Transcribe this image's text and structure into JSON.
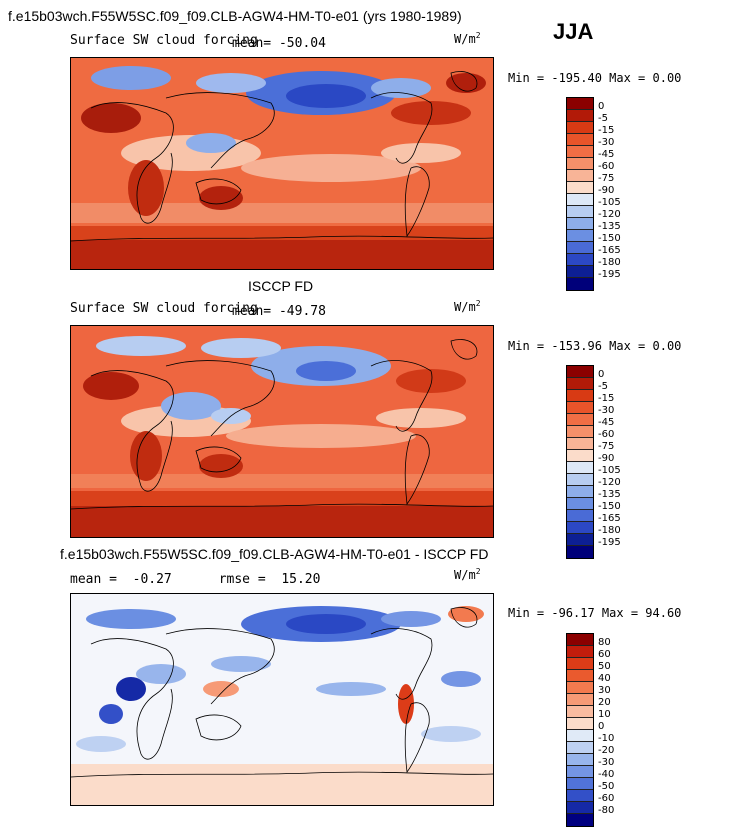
{
  "header": {
    "title": "f.e15b03wch.F55W5SC.f09_f09.CLB-AGW4-HM-T0-e01 (yrs 1980-1989)",
    "season": "JJA"
  },
  "panels": [
    {
      "id": "model",
      "heading": "",
      "variable": "Surface SW cloud forcing",
      "stat_text": "mean= -50.04",
      "units": "W/m",
      "units_sup": "2",
      "minmax": "Min = -195.40 Max =   0.00",
      "colorbar": {
        "labels": [
          "0",
          "-5",
          "-15",
          "-30",
          "-45",
          "-60",
          "-75",
          "-90",
          "-105",
          "-120",
          "-135",
          "-150",
          "-165",
          "-180",
          "-195"
        ],
        "colors": [
          "#8b0000",
          "#b21a08",
          "#d83a14",
          "#e8542a",
          "#f06e45",
          "#f5906a",
          "#f8b497",
          "#fbdcca",
          "#dde8f7",
          "#b7cdf1",
          "#8eaeea",
          "#6b8fe2",
          "#4a6bd6",
          "#2c48c4",
          "#0d1f94",
          "#00007a"
        ]
      }
    },
    {
      "id": "obs",
      "heading": "ISCCP FD",
      "variable": "Surface SW cloud forcing",
      "stat_text": "mean= -49.78",
      "units": "W/m",
      "units_sup": "2",
      "minmax": "Min = -153.96 Max =   0.00",
      "colorbar": {
        "labels": [
          "0",
          "-5",
          "-15",
          "-30",
          "-45",
          "-60",
          "-75",
          "-90",
          "-105",
          "-120",
          "-135",
          "-150",
          "-165",
          "-180",
          "-195"
        ],
        "colors": [
          "#8b0000",
          "#b21a08",
          "#d83a14",
          "#e8542a",
          "#f06e45",
          "#f5906a",
          "#f8b497",
          "#fbdcca",
          "#dde8f7",
          "#b7cdf1",
          "#8eaeea",
          "#6b8fe2",
          "#4a6bd6",
          "#2c48c4",
          "#0d1f94",
          "#00007a"
        ]
      }
    },
    {
      "id": "diff",
      "heading": "f.e15b03wch.F55W5SC.f09_f09.CLB-AGW4-HM-T0-e01 - ISCCP FD",
      "variable": "",
      "stat_text": "mean =  -0.27      rmse =  15.20",
      "units": "W/m",
      "units_sup": "2",
      "minmax": "Min = -96.17 Max =  94.60",
      "colorbar": {
        "labels": [
          "80",
          "60",
          "50",
          "40",
          "30",
          "20",
          "10",
          "0",
          "-10",
          "-20",
          "-30",
          "-40",
          "-50",
          "-60",
          "-80"
        ],
        "colors": [
          "#8b0000",
          "#c21d0c",
          "#dc3c18",
          "#ea5a2e",
          "#f27a4f",
          "#f69a76",
          "#f9bba0",
          "#fbdcca",
          "#e0eaf7",
          "#bed1f2",
          "#98b5ec",
          "#7495e4",
          "#5173d8",
          "#3350c8",
          "#1529a6",
          "#000080"
        ]
      }
    }
  ]
}
